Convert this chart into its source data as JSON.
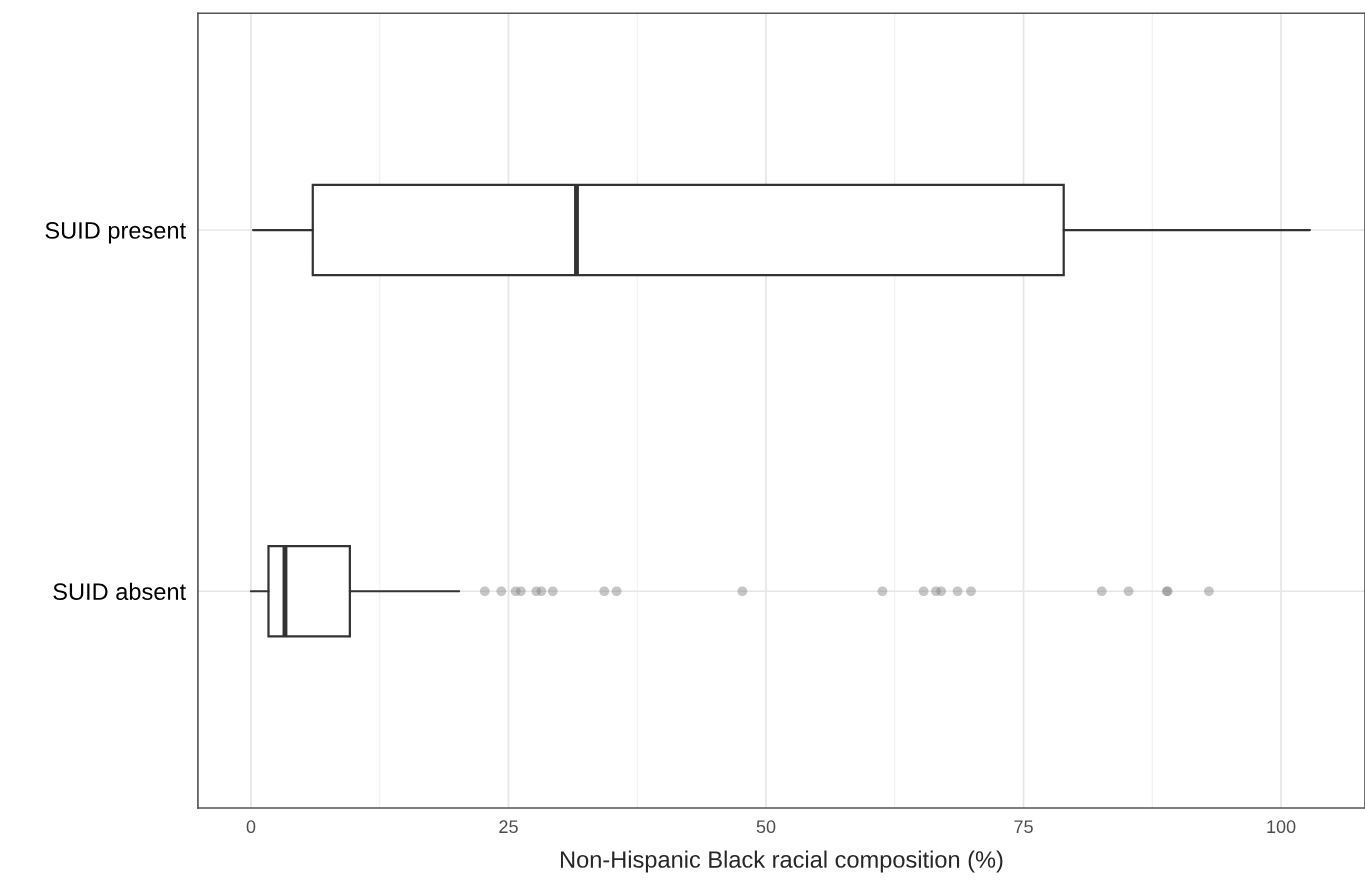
{
  "chart_data": {
    "type": "box",
    "orientation": "horizontal",
    "xlabel": "Non-Hispanic Black racial composition (%)",
    "categories": [
      "SUID present",
      "SUID absent"
    ],
    "boxes": [
      {
        "low": 0.2,
        "q1": 6.0,
        "median": 31.6,
        "q3": 78.9,
        "high": 102.8
      },
      {
        "low": 0,
        "q1": 1.7,
        "median": 3.3,
        "q3": 9.6,
        "high": 20.2,
        "outliers": [
          22.7,
          24.3,
          25.7,
          26.2,
          27.7,
          28.2,
          29.3,
          34.3,
          35.5,
          47.7,
          61.3,
          65.3,
          66.5,
          67.0,
          68.6,
          69.9,
          82.6,
          85.2,
          88.9,
          89.0,
          93.0
        ]
      }
    ],
    "xlim": [
      -5.15,
      108.15
    ],
    "xticks": [
      0,
      25,
      50,
      75,
      100
    ],
    "grid": true
  }
}
